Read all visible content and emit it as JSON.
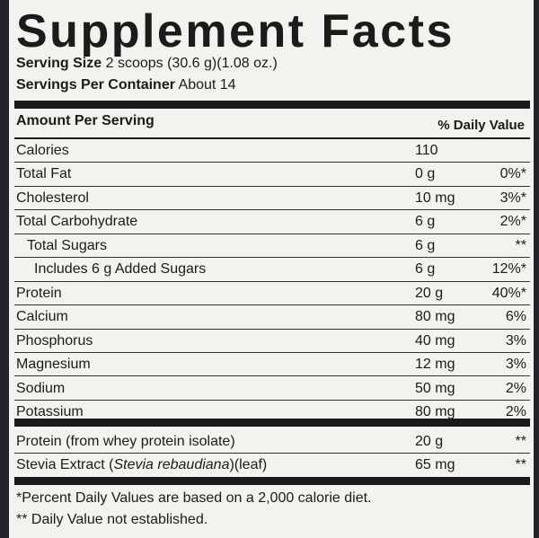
{
  "title": "Supplement Facts",
  "serving_size": {
    "label": "Serving Size",
    "value": "2 scoops (30.6 g)(1.08 oz.)"
  },
  "servings_per_container": {
    "label": "Servings Per Container",
    "value": "About 14"
  },
  "table": {
    "header": {
      "amount": "Amount Per Serving",
      "daily_value": "% Daily Value"
    },
    "rows": [
      {
        "name": "Calories",
        "amount": "110"
      },
      {
        "name": "Total Fat",
        "amount": "0 g",
        "daily_value": "0%*"
      },
      {
        "name": "Cholesterol",
        "amount": "10 mg",
        "daily_value": "3%*"
      },
      {
        "name": "Total Carbohydrate",
        "amount": "6 g",
        "daily_value": "2%*"
      },
      {
        "name": "Total Sugars",
        "amount": "6 g",
        "daily_value": "**"
      },
      {
        "name": "Includes 6 g Added Sugars",
        "amount": "6 g",
        "daily_value": "12%*"
      },
      {
        "name": "Protein",
        "amount": "20 g",
        "daily_value": "40%*"
      },
      {
        "name": "Calcium",
        "amount": "80 mg",
        "daily_value": "6%"
      },
      {
        "name": "Phosphorus",
        "amount": "40 mg",
        "daily_value": "3%"
      },
      {
        "name": "Magnesium",
        "amount": "12 mg",
        "daily_value": "3%"
      },
      {
        "name": "Sodium",
        "amount": "50 mg",
        "daily_value": "2%"
      },
      {
        "name": "Potassium",
        "amount": "80 mg",
        "daily_value": "2%"
      }
    ],
    "other_rows": [
      {
        "name": "Protein (from whey protein isolate)",
        "amount": "20 g",
        "daily_value": "**"
      },
      {
        "name_parts": [
          "Stevia Extract (",
          "Stevia rebaudiana",
          ")(leaf)"
        ],
        "amount": "65 mg",
        "daily_value": "**"
      }
    ]
  },
  "footnotes": [
    "*Percent Daily Values are based on a 2,000 calorie diet.",
    "** Daily Value not established."
  ]
}
